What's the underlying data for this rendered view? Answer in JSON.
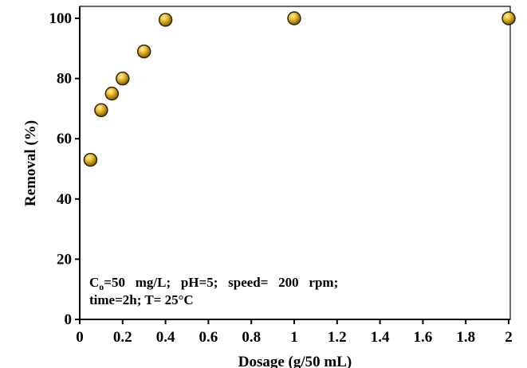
{
  "chart_data": {
    "type": "scatter",
    "title": "",
    "xlabel": "Dosage (g/50 mL)",
    "ylabel": "Removal (%)",
    "xlim": [
      0,
      2
    ],
    "ylim": [
      0,
      100
    ],
    "x_ticks": [
      "0",
      "0.2",
      "0.4",
      "0.6",
      "0.8",
      "1",
      "1.2",
      "1.4",
      "1.6",
      "1.8",
      "2"
    ],
    "y_ticks": [
      "0",
      "20",
      "40",
      "60",
      "80",
      "100"
    ],
    "grid": false,
    "legend": "none",
    "marker_color": "#E6B422",
    "series": [
      {
        "x": [
          0.05,
          0.1,
          0.15,
          0.2,
          0.3,
          0.4,
          1.0,
          2.0
        ],
        "y": [
          53,
          69.5,
          75,
          80,
          89,
          99.5,
          100,
          100
        ]
      }
    ],
    "annotation": {
      "line1": {
        "c_main": "C",
        "c_sub": "o",
        "rest": "=50   mg/L;   pH=5;   speed=   200   rpm;"
      },
      "line2": "time=2h; T= 25°C"
    }
  }
}
